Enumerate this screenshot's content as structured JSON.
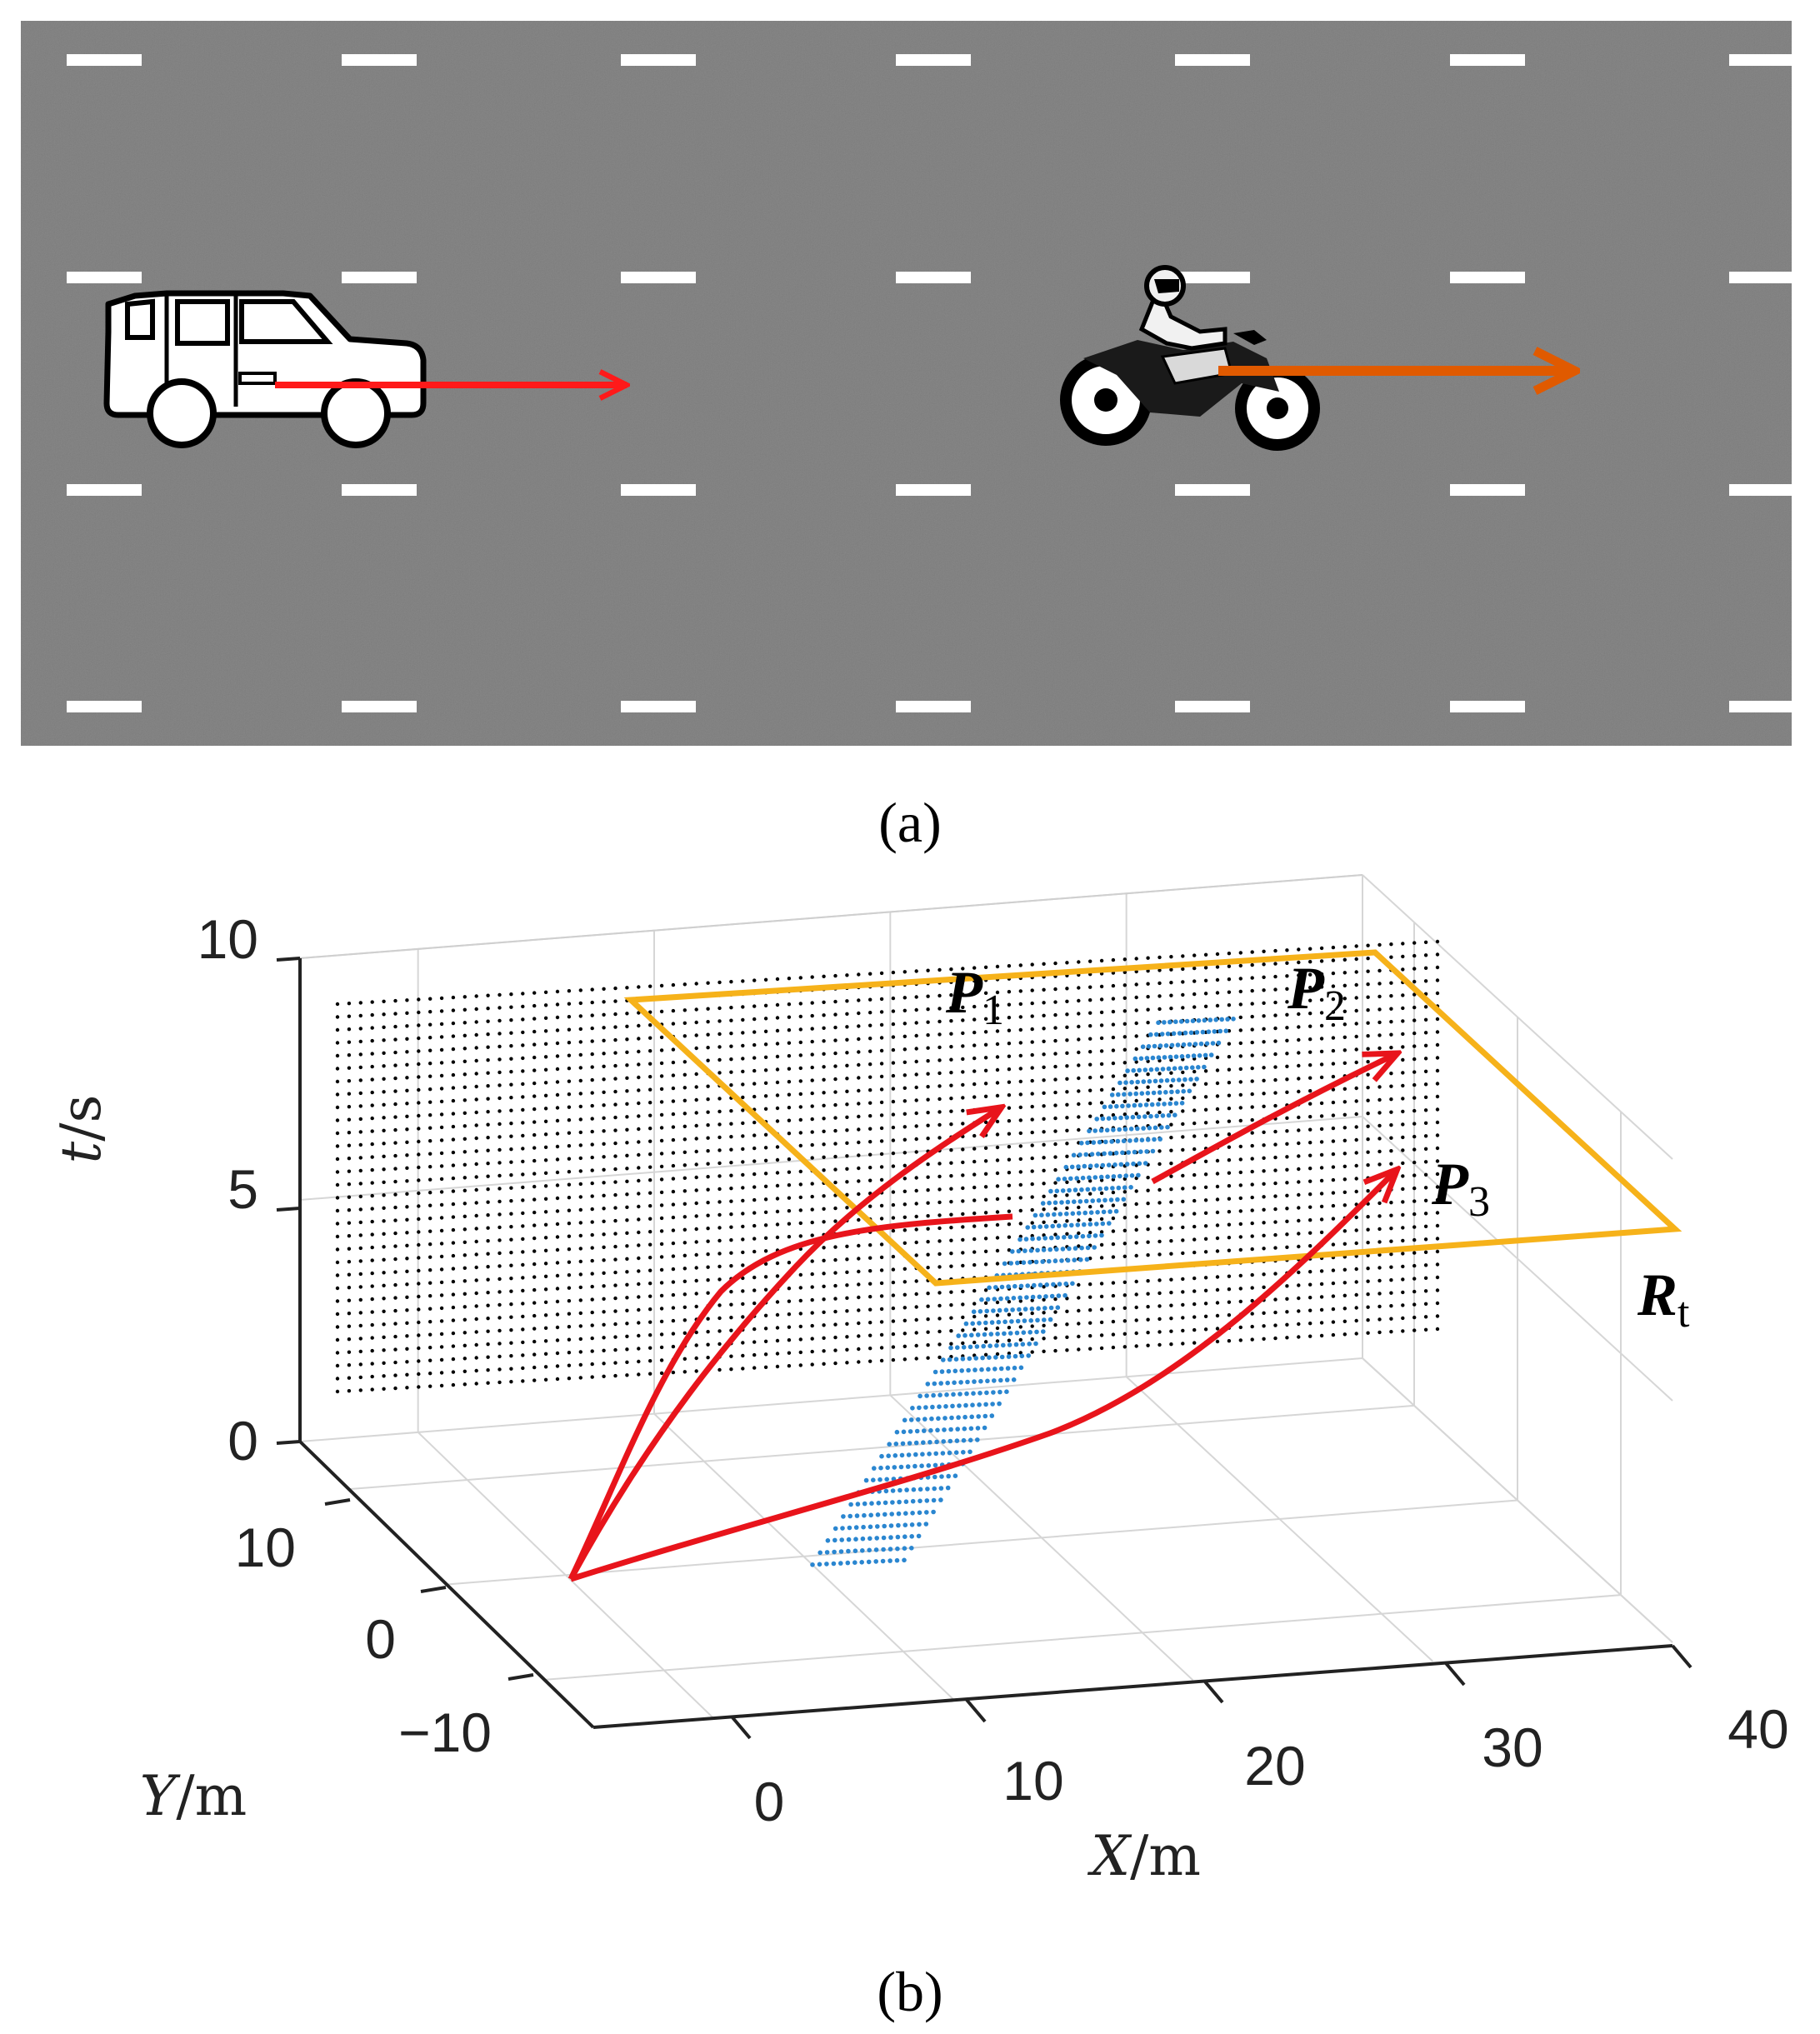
{
  "captions": {
    "a": "(a)",
    "b": "(b)"
  },
  "colors": {
    "road": "#8e8e8e",
    "lane_mark": "#ffffff",
    "car_arrow": "#ff1a1a",
    "moto_arrow": "#e05a00",
    "trajectory": "#e8141b",
    "region": "#f6b21a",
    "sample_dots": "#2a86d0",
    "grid_dots": "#000000"
  },
  "scene": {
    "vehicles": [
      {
        "name": "car",
        "icon": "car-icon"
      },
      {
        "name": "motorcycle",
        "icon": "motorcycle-icon"
      }
    ]
  },
  "chart_data": {
    "type": "3d-trajectory",
    "axes": {
      "x": {
        "label_var": "X",
        "label_unit": "/m",
        "ticks": [
          "0",
          "10",
          "20",
          "30",
          "40"
        ],
        "range": [
          -5,
          40
        ]
      },
      "y": {
        "label_var": "Y",
        "label_unit": "/m",
        "ticks": [
          "−10",
          "0",
          "10"
        ],
        "range": [
          -15,
          15
        ]
      },
      "t": {
        "label_var": "t",
        "label_unit": "/s",
        "ticks": [
          "0",
          "5",
          "10"
        ],
        "range": [
          0,
          10
        ]
      }
    },
    "trajectories": [
      {
        "name": "P",
        "sub": "1"
      },
      {
        "name": "P",
        "sub": "2"
      },
      {
        "name": "P",
        "sub": "3"
      }
    ],
    "region": {
      "name": "R",
      "sub": "t"
    }
  }
}
